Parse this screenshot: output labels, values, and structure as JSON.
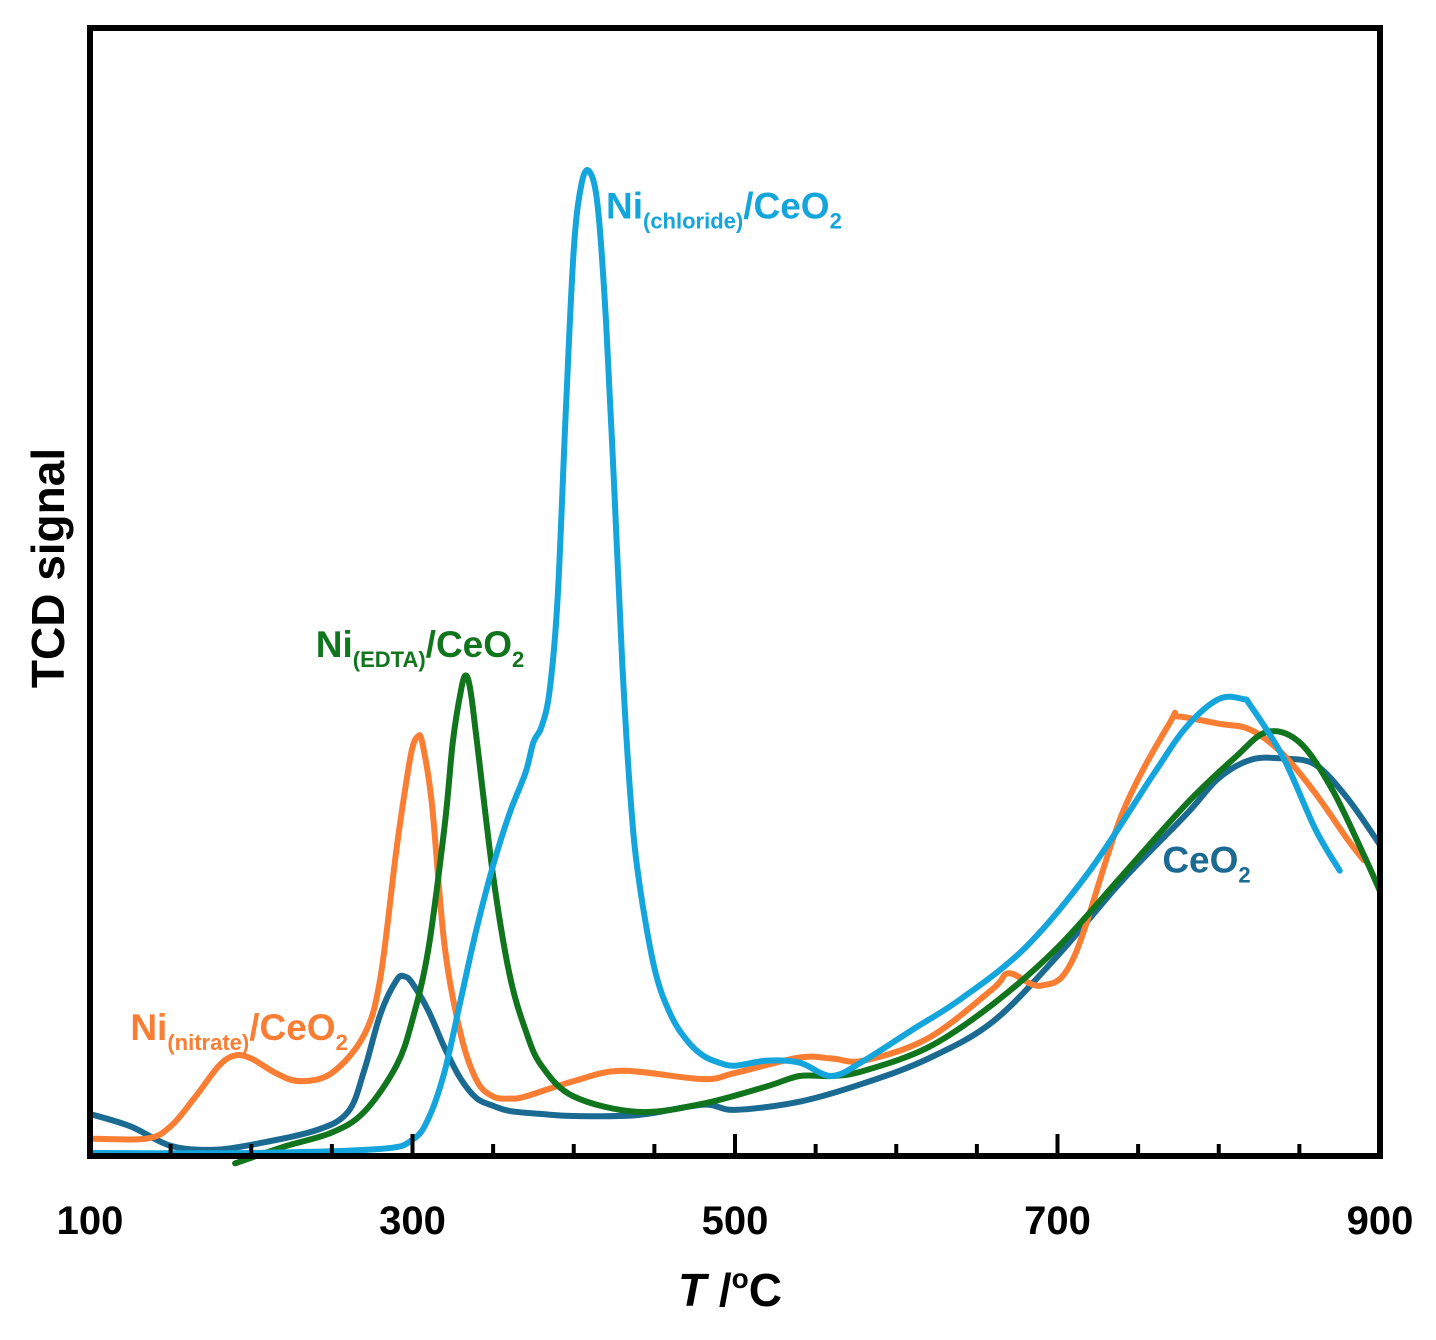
{
  "chart_data": {
    "type": "line",
    "title": "",
    "xlabel": {
      "italic": "T",
      "sep": " /",
      "sup": "o",
      "unit": "C"
    },
    "ylabel": "TCD signal",
    "xlim": [
      100,
      900
    ],
    "ylim": [
      0,
      100
    ],
    "xticks": [
      100,
      300,
      500,
      700,
      900
    ],
    "xticks_minor_step": 50,
    "grid": false,
    "series": [
      {
        "id": "ceo2",
        "name": "CeO2",
        "label": {
          "main": "CeO",
          "sub": "2",
          "tail": ""
        },
        "color": "#1A6A91",
        "x": [
          100,
          125,
          150,
          175,
          200,
          240,
          260,
          270,
          280,
          290,
          295,
          300,
          310,
          320,
          330,
          340,
          350,
          360,
          380,
          400,
          440,
          480,
          500,
          540,
          580,
          620,
          660,
          700,
          740,
          780,
          800,
          820,
          840,
          860,
          880,
          900
        ],
        "y": [
          3.8,
          2.6,
          0.7,
          0.3,
          0.8,
          2.2,
          4.0,
          8.0,
          13.5,
          16.8,
          17.2,
          16.5,
          13.8,
          10.2,
          7.2,
          5.3,
          4.6,
          4.1,
          3.8,
          3.6,
          3.7,
          4.7,
          4.2,
          5.0,
          6.8,
          9.2,
          12.8,
          19.2,
          26.5,
          33.0,
          36.5,
          38.3,
          38.4,
          37.8,
          34.5,
          30.0
        ]
      },
      {
        "id": "nitrate",
        "name": "Ni(nitrate)/CeO2",
        "label": {
          "main": "Ni",
          "sub": "(nitrate)",
          "tail": "/CeO",
          "sub2": "2"
        },
        "color": "#F97D32",
        "x": [
          100,
          135,
          150,
          165,
          180,
          190,
          200,
          215,
          230,
          250,
          270,
          280,
          290,
          297,
          300,
          303,
          306,
          312,
          320,
          330,
          340,
          350,
          360,
          370,
          400,
          430,
          480,
          500,
          540,
          560,
          580,
          620,
          660,
          670,
          690,
          710,
          740,
          770,
          775,
          800,
          820,
          840,
          860,
          880,
          890
        ],
        "y": [
          1.4,
          1.4,
          2.6,
          5.4,
          8.5,
          9.5,
          9.2,
          7.8,
          7.0,
          7.8,
          11.5,
          17.0,
          29.5,
          37.0,
          39.5,
          40.5,
          40.0,
          34.0,
          20.0,
          11.5,
          7.0,
          5.5,
          5.3,
          5.5,
          7.0,
          8.0,
          7.2,
          7.8,
          9.3,
          9.2,
          9.0,
          11.2,
          16.0,
          17.5,
          16.3,
          19.0,
          33.0,
          42.0,
          42.5,
          41.8,
          41.2,
          38.8,
          35.0,
          30.5,
          28.5
        ]
      },
      {
        "id": "edta",
        "name": "Ni(EDTA)/CeO2",
        "label": {
          "main": "Ni",
          "sub": "(EDTA)",
          "tail": "/CeO",
          "sub2": "2"
        },
        "color": "#11751E",
        "x": [
          190,
          220,
          250,
          270,
          290,
          300,
          310,
          320,
          325,
          330,
          333,
          336,
          340,
          350,
          360,
          370,
          380,
          400,
          440,
          480,
          520,
          540,
          560,
          580,
          620,
          660,
          700,
          740,
          780,
          810,
          830,
          850,
          870,
          890,
          900
        ],
        "y": [
          -1.0,
          0.6,
          2.0,
          4.0,
          8.5,
          13.0,
          20.0,
          32.0,
          40.0,
          45.0,
          46.5,
          45.0,
          40.0,
          27.0,
          17.5,
          12.0,
          8.5,
          5.5,
          4.0,
          4.8,
          6.5,
          7.5,
          7.5,
          8.0,
          10.3,
          14.5,
          20.0,
          27.0,
          34.0,
          38.5,
          41.0,
          40.0,
          35.5,
          29.0,
          25.5
        ]
      },
      {
        "id": "chloride",
        "name": "Ni(chloride)/CeO2",
        "label": {
          "main": "Ni",
          "sub": "(chloride)",
          "tail": "/CeO",
          "sub2": "2"
        },
        "color": "#13A5DC",
        "x": [
          100,
          200,
          280,
          300,
          310,
          320,
          330,
          340,
          350,
          360,
          370,
          375,
          380,
          385,
          390,
          395,
          400,
          405,
          410,
          415,
          420,
          425,
          430,
          435,
          440,
          450,
          460,
          470,
          480,
          490,
          500,
          520,
          540,
          560,
          580,
          610,
          640,
          680,
          720,
          760,
          780,
          800,
          815,
          820,
          840,
          860,
          875
        ],
        "y": [
          0,
          0,
          0.4,
          1.3,
          3.4,
          8.0,
          15.0,
          22.0,
          28.0,
          33.0,
          37.0,
          40.0,
          41.5,
          45.0,
          54.0,
          72.0,
          88.0,
          94.5,
          95.5,
          92.0,
          81.0,
          65.0,
          48.0,
          35.0,
          27.0,
          18.0,
          13.5,
          11.0,
          9.5,
          8.8,
          8.5,
          9.0,
          8.8,
          7.5,
          9.0,
          12.0,
          15.0,
          20.0,
          27.5,
          37.0,
          41.5,
          44.2,
          44.2,
          43.5,
          38.5,
          31.5,
          27.5
        ]
      }
    ],
    "labels": {
      "chloride": {
        "x": 420,
        "y": 91
      },
      "edta": {
        "x": 240,
        "y": 48.3
      },
      "nitrate": {
        "x": 125,
        "y": 11.0
      },
      "ceo2": {
        "x": 765,
        "y": 27.3
      }
    }
  }
}
